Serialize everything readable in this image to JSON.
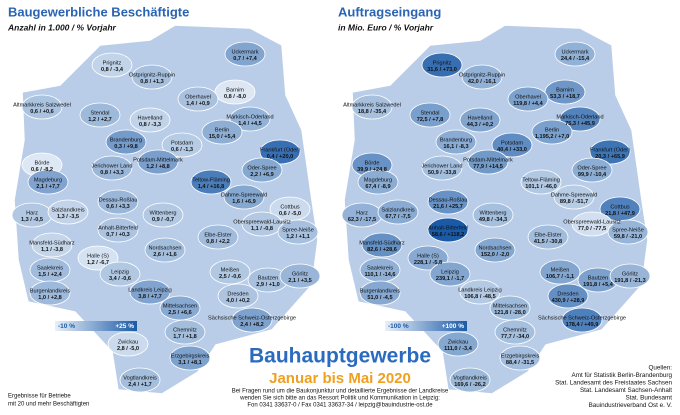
{
  "maps": [
    {
      "title": "Baugewerbliche Beschäftigte",
      "subtitle": "Anzahl in 1.000 / % Vorjahr",
      "legend": {
        "min": -10,
        "max": 25,
        "min_label": "-10 %",
        "max_label": "+25 %"
      },
      "districts": [
        {
          "name": "Prignitz",
          "label": "0,8 / -3,4",
          "change": -3.4
        },
        {
          "name": "Uckermark",
          "label": "0,7 / +7,4",
          "change": 7.4
        },
        {
          "name": "Ostprignitz-Ruppin",
          "label": "0,8 / +1,3",
          "change": 1.3
        },
        {
          "name": "Barnim",
          "label": "0,8 / -8,0",
          "change": -8.0
        },
        {
          "name": "Oberhavel",
          "label": "1,4 / +0,9",
          "change": 0.9
        },
        {
          "name": "Altmarkkreis Salzwedel",
          "label": "0,6 / +0,6",
          "change": 0.6
        },
        {
          "name": "Stendal",
          "label": "1,2 / +2,7",
          "change": 2.7
        },
        {
          "name": "Havelland",
          "label": "0,8 / -3,3",
          "change": -3.3
        },
        {
          "name": "Märkisch-Oderland",
          "label": "1,4 / +4,5",
          "change": 4.5
        },
        {
          "name": "Berlin",
          "label": "15,0 / +5,4",
          "change": 5.4
        },
        {
          "name": "Brandenburg",
          "label": "0,3 / +9,8",
          "change": 9.8
        },
        {
          "name": "Potsdam",
          "label": "0,6 / -1,3",
          "change": -1.3
        },
        {
          "name": "Frankfurt (Oder)",
          "label": "0,4 / +20,0",
          "change": 20.0
        },
        {
          "name": "Potsdam-Mittelmark",
          "label": "1,2 / +8,8",
          "change": 8.8
        },
        {
          "name": "Jerichower Land",
          "label": "0,8 / +3,3",
          "change": 3.3
        },
        {
          "name": "Oder-Spree",
          "label": "2,2 / +6,9",
          "change": 6.9
        },
        {
          "name": "Teltow-Fläming",
          "label": "1,4 / +16,8",
          "change": 16.8
        },
        {
          "name": "Börde",
          "label": "0,6 / -8,2",
          "change": -8.2
        },
        {
          "name": "Magdeburg",
          "label": "2,1 / +7,7",
          "change": 7.7
        },
        {
          "name": "Dahme-Spreewald",
          "label": "1,6 / +6,9",
          "change": 6.9
        },
        {
          "name": "Harz",
          "label": "1,3 / -0,5",
          "change": -0.5
        },
        {
          "name": "Salzlandkreis",
          "label": "1,3 / -3,5",
          "change": -3.5
        },
        {
          "name": "Dessau-Roßlau",
          "label": "0,6 / +3,3",
          "change": 3.3
        },
        {
          "name": "Wittenberg",
          "label": "0,9 / -0,7",
          "change": -0.7
        },
        {
          "name": "Anhalt-Bitterfeld",
          "label": "0,7 / +0,3",
          "change": 0.3
        },
        {
          "name": "Cottbus",
          "label": "0,6 / -5,0",
          "change": -5.0
        },
        {
          "name": "Oberspreewald-Lausitz",
          "label": "1,1 / -0,8",
          "change": -0.8
        },
        {
          "name": "Spree-Neiße",
          "label": "1,2 / +1,1",
          "change": 1.1
        },
        {
          "name": "Elbe-Elster",
          "label": "0,8 / +2,2",
          "change": 2.2
        },
        {
          "name": "Mansfeld-Südharz",
          "label": "1,1 / -3,8",
          "change": -3.8
        },
        {
          "name": "Halle (S)",
          "label": "1,2 / -6,7",
          "change": -6.7
        },
        {
          "name": "Nordsachsen",
          "label": "2,6 / +1,6",
          "change": 1.6
        },
        {
          "name": "Saalekreis",
          "label": "1,5 / +2,4",
          "change": 2.4
        },
        {
          "name": "Leipzig",
          "label": "3,4 / -0,6",
          "change": -0.6
        },
        {
          "name": "Meißen",
          "label": "2,5 / -0,6",
          "change": -0.6
        },
        {
          "name": "Bautzen",
          "label": "2,9 / +1,0",
          "change": 1.0
        },
        {
          "name": "Görlitz",
          "label": "2,1 / +3,5",
          "change": 3.5
        },
        {
          "name": "Burgenlandkreis",
          "label": "1,0 / +2,8",
          "change": 2.8
        },
        {
          "name": "Landkreis Leipzig",
          "label": "3,8 / +7,7",
          "change": 7.7
        },
        {
          "name": "Dresden",
          "label": "4,0 / +0,2",
          "change": 0.2
        },
        {
          "name": "Mittelsachsen",
          "label": "2,5 / +6,6",
          "change": 6.6
        },
        {
          "name": "Sächsische Schweiz-Osterzgebirge",
          "label": "2,4 / +8,2",
          "change": 8.2
        },
        {
          "name": "Chemnitz",
          "label": "1,7 / +1,8",
          "change": 1.8
        },
        {
          "name": "Zwickau",
          "label": "2,8 / -5,0",
          "change": -5.0
        },
        {
          "name": "Erzgebirgskreis",
          "label": "3,1 / +8,1",
          "change": 8.1
        },
        {
          "name": "Vogtlandkreis",
          "label": "2,4 / +1,7",
          "change": 1.7
        }
      ]
    },
    {
      "title": "Auftragseingang",
      "subtitle": "in Mio. Euro / % Vorjahr",
      "legend": {
        "min": -100,
        "max": 100,
        "min_label": "-100 %",
        "max_label": "+100 %"
      },
      "districts": [
        {
          "name": "Prignitz",
          "label": "31,6 / +73,0",
          "change": 73.0
        },
        {
          "name": "Uckermark",
          "label": "24,4 / -15,4",
          "change": -15.4
        },
        {
          "name": "Ostprignitz-Ruppin",
          "label": "42,0 / -16,1",
          "change": -16.1
        },
        {
          "name": "Barnim",
          "label": "53,3 / +18,7",
          "change": 18.7
        },
        {
          "name": "Oberhavel",
          "label": "119,8 / +4,4",
          "change": 4.4
        },
        {
          "name": "Altmarkkreis Salzwedel",
          "label": "18,8 / -35,4",
          "change": -35.4
        },
        {
          "name": "Stendal",
          "label": "72,5 / +7,8",
          "change": 7.8
        },
        {
          "name": "Havelland",
          "label": "44,3 / +0,2",
          "change": 0.2
        },
        {
          "name": "Märkisch-Oderland",
          "label": "75,3 / +45,9",
          "change": 45.9
        },
        {
          "name": "Berlin",
          "label": "1.195,2 / +7,0",
          "change": 7.0
        },
        {
          "name": "Brandenburg",
          "label": "16,1 / -8,3",
          "change": -8.3
        },
        {
          "name": "Potsdam",
          "label": "40,4 / +33,0",
          "change": 33.0
        },
        {
          "name": "Frankfurt (Oder)",
          "label": "20,3 / +65,9",
          "change": 65.9
        },
        {
          "name": "Potsdam-Mittelmark",
          "label": "77,9 / +14,5",
          "change": 14.5
        },
        {
          "name": "Jerichower Land",
          "label": "50,9 / -33,8",
          "change": -33.8
        },
        {
          "name": "Oder-Spree",
          "label": "99,9 / -10,4",
          "change": -10.4
        },
        {
          "name": "Teltow-Fläming",
          "label": "101,1 / -46,0",
          "change": -46.0
        },
        {
          "name": "Börde",
          "label": "39,9 / +24,8",
          "change": 24.8
        },
        {
          "name": "Magdeburg",
          "label": "67,4 / -8,9",
          "change": -8.9
        },
        {
          "name": "Dahme-Spreewald",
          "label": "89,8 / -51,7",
          "change": -51.7
        },
        {
          "name": "Harz",
          "label": "62,3 / -17,5",
          "change": -17.5
        },
        {
          "name": "Salzlandkreis",
          "label": "67,7 / -7,5",
          "change": -7.5
        },
        {
          "name": "Dessau-Roßlau",
          "label": "21,6 / +25,7",
          "change": 25.7
        },
        {
          "name": "Wittenberg",
          "label": "49,8 / -34,3",
          "change": -34.3
        },
        {
          "name": "Anhalt-Bitterfeld",
          "label": "58,6 / +118,2",
          "change": 118.2
        },
        {
          "name": "Cottbus",
          "label": "21,8 / +47,9",
          "change": 47.9
        },
        {
          "name": "Oberspreewald-Lausitz",
          "label": "77,0 / -77,5",
          "change": -77.5
        },
        {
          "name": "Spree-Neiße",
          "label": "59,8 / -21,0",
          "change": -21.0
        },
        {
          "name": "Elbe-Elster",
          "label": "41,5 / -30,8",
          "change": -30.8
        },
        {
          "name": "Mansfeld-Südharz",
          "label": "82,6 / +28,6",
          "change": 28.6
        },
        {
          "name": "Halle (S)",
          "label": "228,1 / -5,8",
          "change": -5.8
        },
        {
          "name": "Nordsachsen",
          "label": "152,0 / -2,0",
          "change": -2.0
        },
        {
          "name": "Saalekreis",
          "label": "110,1 / -14,6",
          "change": -14.6
        },
        {
          "name": "Leipzig",
          "label": "239,1 / -1,7",
          "change": -1.7
        },
        {
          "name": "Meißen",
          "label": "106,7 / -1,1",
          "change": -1.1
        },
        {
          "name": "Bautzen",
          "label": "191,8 / +5,4",
          "change": 5.4
        },
        {
          "name": "Görlitz",
          "label": "191,8 / -21,3",
          "change": -21.3
        },
        {
          "name": "Burgenlandkreis",
          "label": "51,0 / -4,5",
          "change": -4.5
        },
        {
          "name": "Landkreis Leipzig",
          "label": "106,8 / -48,5",
          "change": -48.5
        },
        {
          "name": "Dresden",
          "label": "430,9 / +28,9",
          "change": 28.9
        },
        {
          "name": "Mittelsachsen",
          "label": "121,8 / -28,0",
          "change": -28.0
        },
        {
          "name": "Sächsische Schweiz-Osterzgebirge",
          "label": "178,4 / +49,9",
          "change": 49.9
        },
        {
          "name": "Chemnitz",
          "label": "77,7 / -34,0",
          "change": -34.0
        },
        {
          "name": "Zwickau",
          "label": "111,0 / -3,4",
          "change": -3.4
        },
        {
          "name": "Erzgebirgskreis",
          "label": "88,4 / -31,5",
          "change": -31.5
        },
        {
          "name": "Vogtlandkreis",
          "label": "169,6 / -26,2",
          "change": -26.2
        }
      ]
    }
  ],
  "headline": "Bauhauptgewerbe",
  "period": "Januar bis Mai 2020",
  "contact": [
    "Bei Fragen rund um die Baukonjunktur und detaillierte Ergebnisse der Landkreise",
    "wenden Sie sich bitte an das Ressort Politik und Kommunikation in Leipzig:",
    "Fon 0341 33637-0 / Fax 0341 33637-34 / leipzig@bauindustrie-ost.de"
  ],
  "note": [
    "Ergebnisse für Betriebe",
    "mit 20 und mehr Beschäftigten"
  ],
  "sources": [
    "Quellen:",
    "Amt für Statistik Berlin-Brandenburg",
    "Stat. Landesamt des Freistaates Sachsen",
    "Stat. Landesamt Sachsen-Anhalt",
    "Stat. Bundesamt",
    "Bauindustrieverband Ost e. V."
  ]
}
